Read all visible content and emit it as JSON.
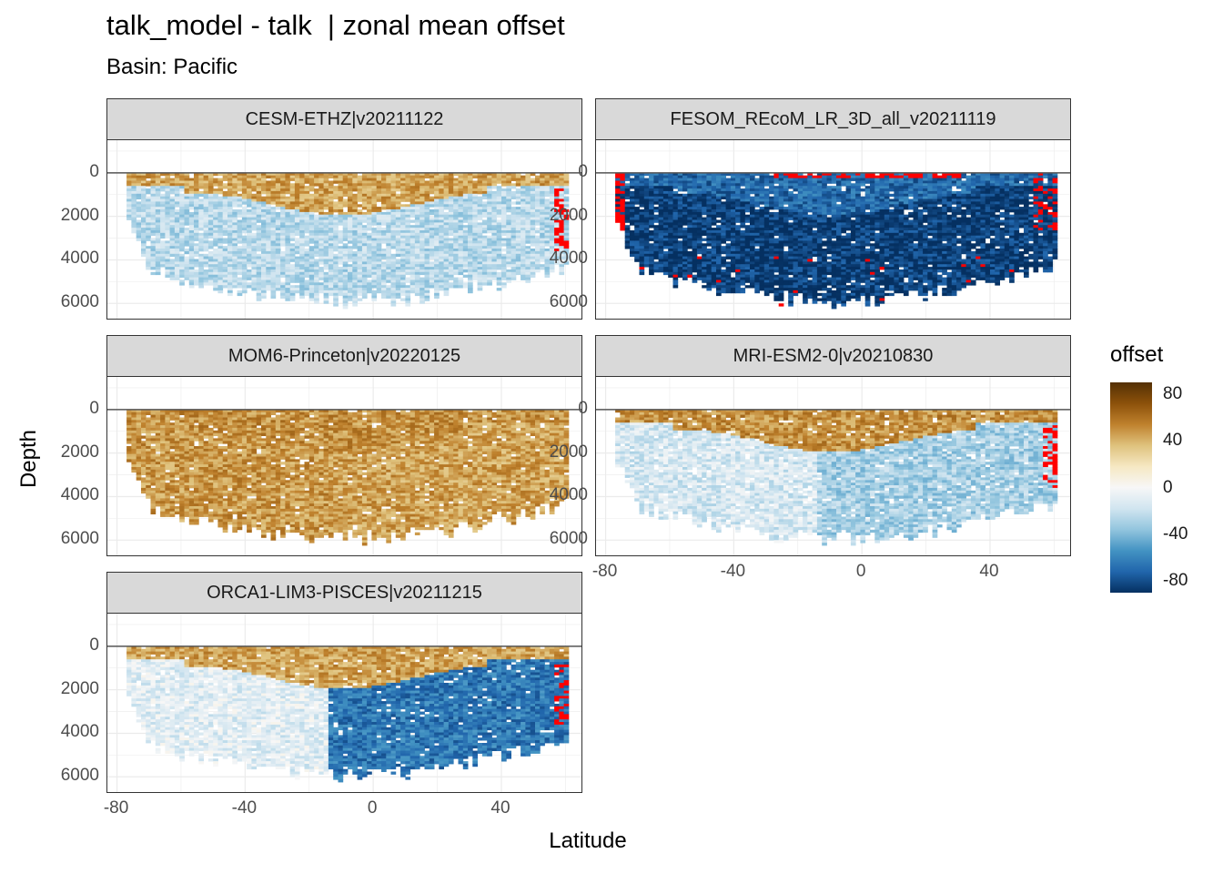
{
  "title": "talk_model - talk  | zonal mean offset",
  "subtitle": "Basin: Pacific",
  "chart_data": {
    "type": "heatmap",
    "title": "talk_model - talk  | zonal mean offset",
    "subtitle": "Basin: Pacific",
    "xlabel": "Latitude",
    "ylabel": "Depth",
    "xlim": [
      -83,
      65
    ],
    "ylim": [
      6700,
      -1500
    ],
    "x_ticks": [
      "-80",
      "-40",
      "0",
      "40"
    ],
    "y_ticks": [
      "0",
      "2000",
      "4000",
      "6000"
    ],
    "y_reversed": true,
    "legend": {
      "title": "offset",
      "ticks": [
        "80",
        "40",
        "0",
        "-40",
        "-80"
      ],
      "range": [
        -90,
        90
      ],
      "out_of_range_color": "#ff0000",
      "palette": [
        "#053061",
        "#2166ac",
        "#4393c3",
        "#92c5de",
        "#d1e5f0",
        "#f7f7f7",
        "#f6e8c3",
        "#dfc27d",
        "#bf812d",
        "#8c510a",
        "#543005"
      ]
    },
    "panels": [
      {
        "name": "CESM-ETHZ|v20211122",
        "upper_offset": 45,
        "deep_offset": -25,
        "deep_north_offset": -25,
        "out_of_range": "north-edge"
      },
      {
        "name": "FESOM_REcoM_LR_3D_all_v20211119",
        "upper_offset": -70,
        "deep_offset": -85,
        "deep_north_offset": -85,
        "out_of_range": "surface-and-edges"
      },
      {
        "name": "MOM6-Princeton|v20220125",
        "upper_offset": 50,
        "deep_offset": 48,
        "deep_north_offset": 45,
        "out_of_range": "none"
      },
      {
        "name": "MRI-ESM2-0|v20210830",
        "upper_offset": 50,
        "deep_offset": -15,
        "deep_north_offset": -30,
        "out_of_range": "north-edge"
      },
      {
        "name": "ORCA1-LIM3-PISCES|v20211215",
        "upper_offset": 45,
        "deep_offset": -10,
        "deep_north_offset": -65,
        "out_of_range": "north-edge"
      }
    ]
  }
}
